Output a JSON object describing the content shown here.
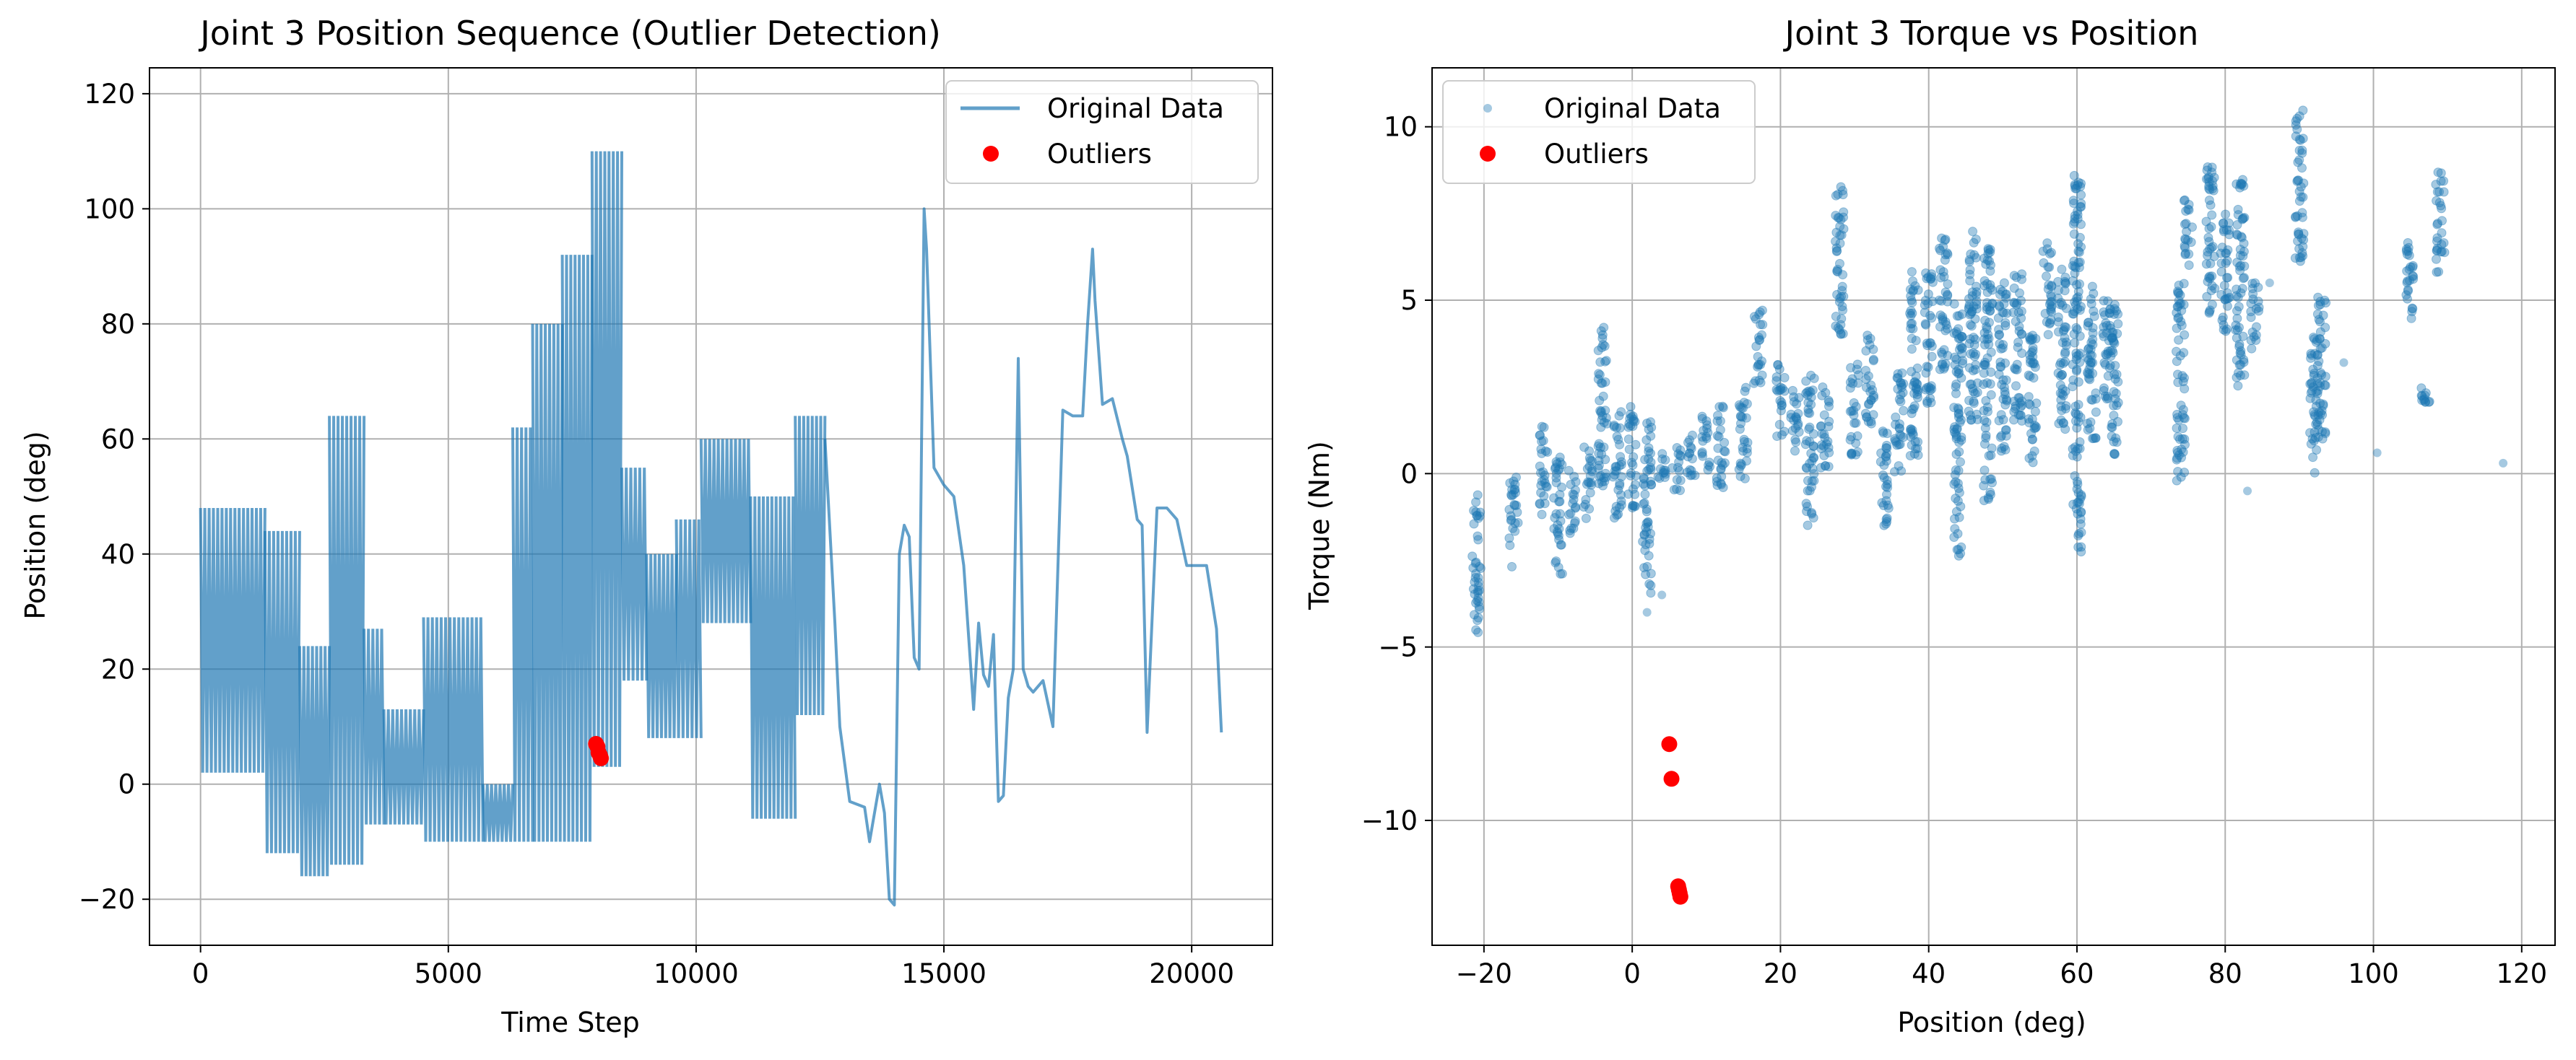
{
  "colors": {
    "series": "#1f77b4",
    "outlier": "#ff0000",
    "grid": "#b0b0b0",
    "axes": "#000000",
    "legend_border": "#cccccc"
  },
  "chart_data": [
    {
      "type": "line",
      "title": "Joint 3 Position Sequence (Outlier Detection)",
      "xlabel": "Time Step",
      "ylabel": "Position (deg)",
      "xlim": [
        -1030,
        21630
      ],
      "ylim": [
        -28,
        124.5
      ],
      "xticks": [
        0,
        5000,
        10000,
        15000,
        20000
      ],
      "xtick_labels": [
        "0",
        "5000",
        "10000",
        "15000",
        "20000"
      ],
      "yticks": [
        -20,
        0,
        20,
        40,
        60,
        80,
        100,
        120
      ],
      "ytick_labels": [
        "−20",
        "0",
        "20",
        "40",
        "60",
        "80",
        "100",
        "120"
      ],
      "grid": true,
      "legend_position": "upper right",
      "legend": [
        "Original Data",
        "Outliers"
      ],
      "series": [
        {
          "name": "Original Data",
          "style": "line",
          "alpha": 0.7,
          "bands": [
            {
              "x0": 0,
              "x1": 1300,
              "y_low": 2,
              "y_high": 48
            },
            {
              "x0": 1300,
              "x1": 2000,
              "y_low": -12,
              "y_high": 44
            },
            {
              "x0": 2000,
              "x1": 2600,
              "y_low": -16,
              "y_high": 24
            },
            {
              "x0": 2600,
              "x1": 3300,
              "y_low": -14,
              "y_high": 64
            },
            {
              "x0": 3300,
              "x1": 3700,
              "y_low": -7,
              "y_high": 27
            },
            {
              "x0": 3700,
              "x1": 4500,
              "y_low": -7,
              "y_high": 13
            },
            {
              "x0": 4500,
              "x1": 5700,
              "y_low": -10,
              "y_high": 29
            },
            {
              "x0": 5700,
              "x1": 6300,
              "y_low": -10,
              "y_high": 0
            },
            {
              "x0": 6300,
              "x1": 6700,
              "y_low": -10,
              "y_high": 62
            },
            {
              "x0": 6700,
              "x1": 7300,
              "y_low": -10,
              "y_high": 80
            },
            {
              "x0": 7300,
              "x1": 7900,
              "y_low": -10,
              "y_high": 92
            },
            {
              "x0": 7900,
              "x1": 8500,
              "y_low": 3,
              "y_high": 110
            },
            {
              "x0": 8500,
              "x1": 9000,
              "y_low": 18,
              "y_high": 55
            },
            {
              "x0": 9000,
              "x1": 9600,
              "y_low": 8,
              "y_high": 40
            },
            {
              "x0": 9600,
              "x1": 10100,
              "y_low": 8,
              "y_high": 46
            },
            {
              "x0": 10100,
              "x1": 11100,
              "y_low": 28,
              "y_high": 60
            },
            {
              "x0": 11100,
              "x1": 12000,
              "y_low": -6,
              "y_high": 50
            },
            {
              "x0": 12000,
              "x1": 12600,
              "y_low": 12,
              "y_high": 64
            }
          ],
          "x": [
            12600,
            12800,
            12900,
            13100,
            13400,
            13500,
            13700,
            13800,
            13900,
            14000,
            14100,
            14200,
            14300,
            14400,
            14500,
            14600,
            14650,
            14800,
            15000,
            15200,
            15400,
            15600,
            15700,
            15800,
            15900,
            16000,
            16100,
            16200,
            16300,
            16400,
            16500,
            16600,
            16700,
            16800,
            17000,
            17200,
            17400,
            17600,
            17800,
            17900,
            18000,
            18050,
            18200,
            18400,
            18600,
            18700,
            18900,
            19000,
            19100,
            19300,
            19500,
            19700,
            19900,
            20100,
            20300,
            20500,
            20600
          ],
          "y": [
            60,
            28,
            10,
            -3,
            -4,
            -10,
            0,
            -5,
            -20,
            -21,
            40,
            45,
            43,
            22,
            20,
            100,
            93,
            55,
            52,
            50,
            38,
            13,
            28,
            19,
            17,
            26,
            -3,
            -2,
            15,
            20,
            74,
            20,
            17,
            16,
            18,
            10,
            65,
            64,
            64,
            80,
            93,
            84,
            66,
            67,
            60,
            57,
            46,
            45,
            9,
            48,
            48,
            46,
            38,
            38,
            38,
            27,
            9
          ]
        },
        {
          "name": "Outliers",
          "style": "scatter",
          "x": [
            7980,
            8010,
            8030,
            8060,
            8080
          ],
          "y": [
            7,
            6.5,
            5.5,
            5,
            4.5
          ]
        }
      ]
    },
    {
      "type": "scatter",
      "title": "Joint 3 Torque vs Position",
      "xlabel": "Position (deg)",
      "ylabel": "Torque (Nm)",
      "xlim": [
        -27,
        124.5
      ],
      "ylim": [
        -13.6,
        11.7
      ],
      "xticks": [
        -20,
        0,
        20,
        40,
        60,
        80,
        100,
        120
      ],
      "xtick_labels": [
        "−20",
        "0",
        "20",
        "40",
        "60",
        "80",
        "100",
        "120"
      ],
      "yticks": [
        -10,
        -5,
        0,
        5,
        10
      ],
      "ytick_labels": [
        "−10",
        "−5",
        "0",
        "5",
        "10"
      ],
      "grid": true,
      "legend_position": "upper left",
      "legend": [
        "Original Data",
        "Outliers"
      ],
      "series": [
        {
          "name": "Original Data",
          "style": "scatter",
          "alpha": 0.4,
          "clusters": [
            {
              "x": -21,
              "y_low": -4.6,
              "y_high": -0.6
            },
            {
              "x": -16,
              "y_low": -2.7,
              "y_high": -0.1
            },
            {
              "x": -12,
              "y_low": -1.2,
              "y_high": 1.4
            },
            {
              "x": -10,
              "y_low": -3.0,
              "y_high": 0.5
            },
            {
              "x": -8,
              "y_low": -1.8,
              "y_high": 0.1
            },
            {
              "x": -6,
              "y_low": -1.3,
              "y_high": 0.8
            },
            {
              "x": -4,
              "y_low": -0.5,
              "y_high": 4.3
            },
            {
              "x": -2,
              "y_low": -1.3,
              "y_high": 1.9
            },
            {
              "x": 0,
              "y_low": -1.0,
              "y_high": 2.0
            },
            {
              "x": 2,
              "y_low": -3.5,
              "y_high": 1.5
            },
            {
              "x": 4,
              "y_low": -0.2,
              "y_high": 0.6
            },
            {
              "x": 6,
              "y_low": -0.5,
              "y_high": 0.9
            },
            {
              "x": 8,
              "y_low": -0.3,
              "y_high": 1.2
            },
            {
              "x": 10,
              "y_low": 0.0,
              "y_high": 1.8
            },
            {
              "x": 12,
              "y_low": -0.4,
              "y_high": 2.2
            },
            {
              "x": 15,
              "y_low": -0.2,
              "y_high": 2.6
            },
            {
              "x": 17,
              "y_low": 2.5,
              "y_high": 4.8
            },
            {
              "x": 20,
              "y_low": 1.0,
              "y_high": 3.2
            },
            {
              "x": 22,
              "y_low": 0.5,
              "y_high": 2.5
            },
            {
              "x": 24,
              "y_low": -1.5,
              "y_high": 3.0
            },
            {
              "x": 26,
              "y_low": 0.0,
              "y_high": 2.6
            },
            {
              "x": 28,
              "y_low": 4.0,
              "y_high": 8.4
            },
            {
              "x": 30,
              "y_low": 0.5,
              "y_high": 3.2
            },
            {
              "x": 32,
              "y_low": 1.2,
              "y_high": 4.0
            },
            {
              "x": 34,
              "y_low": -1.5,
              "y_high": 1.5
            },
            {
              "x": 36,
              "y_low": 0.0,
              "y_high": 3.2
            },
            {
              "x": 38,
              "y_low": 0.5,
              "y_high": 6.0
            },
            {
              "x": 40,
              "y_low": 2.0,
              "y_high": 5.8
            },
            {
              "x": 42,
              "y_low": 3.0,
              "y_high": 7.0
            },
            {
              "x": 44,
              "y_low": -2.5,
              "y_high": 5.0
            },
            {
              "x": 46,
              "y_low": 1.0,
              "y_high": 7.0
            },
            {
              "x": 48,
              "y_low": -0.8,
              "y_high": 6.5
            },
            {
              "x": 50,
              "y_low": 0.5,
              "y_high": 5.5
            },
            {
              "x": 52,
              "y_low": 1.5,
              "y_high": 5.8
            },
            {
              "x": 54,
              "y_low": 0.0,
              "y_high": 4.0
            },
            {
              "x": 56,
              "y_low": 4.0,
              "y_high": 6.8
            },
            {
              "x": 58,
              "y_low": 1.0,
              "y_high": 6.0
            },
            {
              "x": 60,
              "y_low": -2.3,
              "y_high": 8.7
            },
            {
              "x": 62,
              "y_low": 1.0,
              "y_high": 5.5
            },
            {
              "x": 64,
              "y_low": 2.0,
              "y_high": 5.0
            },
            {
              "x": 65,
              "y_low": 0.5,
              "y_high": 5.0
            },
            {
              "x": 74,
              "y_low": -0.3,
              "y_high": 5.5
            },
            {
              "x": 75,
              "y_low": 6.0,
              "y_high": 8.0
            },
            {
              "x": 78,
              "y_low": 4.5,
              "y_high": 9.0
            },
            {
              "x": 80,
              "y_low": 4.0,
              "y_high": 7.5
            },
            {
              "x": 82,
              "y_low": 2.5,
              "y_high": 8.5
            },
            {
              "x": 84,
              "y_low": 3.5,
              "y_high": 5.5
            },
            {
              "x": 90,
              "y_low": 6.0,
              "y_high": 10.5
            },
            {
              "x": 92,
              "y_low": -0.1,
              "y_high": 4.0
            },
            {
              "x": 93,
              "y_low": 1.0,
              "y_high": 5.2
            },
            {
              "x": 105,
              "y_low": 4.2,
              "y_high": 6.8
            },
            {
              "x": 107,
              "y_low": 2.0,
              "y_high": 2.6
            },
            {
              "x": 109,
              "y_low": 5.8,
              "y_high": 8.7
            }
          ],
          "x": [
            100.5,
            117.5,
            96,
            83,
            86,
            2,
            4
          ],
          "y": [
            0.6,
            0.3,
            3.2,
            -0.5,
            5.5,
            -4.0,
            -3.5
          ]
        },
        {
          "name": "Outliers",
          "style": "scatter",
          "x": [
            5.0,
            5.3,
            6.2,
            6.3,
            6.4,
            6.5
          ],
          "y": [
            -7.8,
            -8.8,
            -11.9,
            -12.0,
            -12.1,
            -12.2
          ]
        }
      ]
    }
  ]
}
